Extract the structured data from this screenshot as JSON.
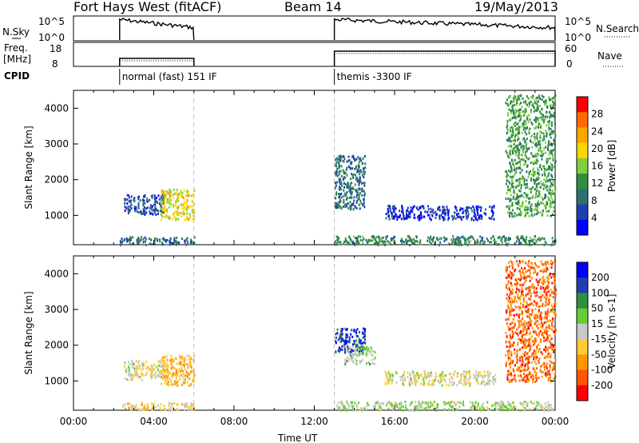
{
  "header": {
    "radar": "Fort Hays West (fitACF)",
    "beam": "Beam 14",
    "date": "19/May/2013"
  },
  "summary": {
    "nsky_label": "N.Sky",
    "nsky_ticks": [
      "10^5",
      "10^0"
    ],
    "nsearch_label": "N.Search",
    "nsearch_ticks": [
      "10^5",
      "10^0"
    ],
    "freq_label": [
      "Freq.",
      "[MHz]"
    ],
    "freq_ticks": [
      "18",
      "8"
    ],
    "nave_label": "Nave",
    "nave_ticks": [
      "60",
      "0"
    ],
    "cpid_label": "CPID",
    "cpid_segments": [
      {
        "start_hour": 2.3,
        "end_hour": 6.0,
        "label": "normal (fast) 151 IF"
      },
      {
        "start_hour": 13.0,
        "end_hour": 24.0,
        "label": "themis -3300 IF"
      }
    ]
  },
  "chart_data": [
    {
      "type": "heatmap",
      "title": "",
      "xlabel": "Time UT",
      "ylabel": "Slant Range [km]",
      "xlim": [
        0,
        24
      ],
      "ylim": [
        180,
        4500
      ],
      "x_ticks": [
        "00:00",
        "04:00",
        "08:00",
        "12:00",
        "16:00",
        "20:00",
        "00:00"
      ],
      "y_ticks": [
        "1000",
        "2000",
        "3000",
        "4000"
      ],
      "colorbar": {
        "label": "Power [dB]",
        "ticks": [
          "28",
          "24",
          "20",
          "16",
          "12",
          "8",
          "4"
        ],
        "range": [
          0,
          30
        ],
        "colors": [
          "#0000ff",
          "#1f3fb0",
          "#2e6f6f",
          "#2f8f3f",
          "#7fcf3f",
          "#ffd700",
          "#ffa500",
          "#ff6a00",
          "#ff0000"
        ]
      },
      "regions": [
        {
          "t0": 2.3,
          "t1": 6.0,
          "r0": 200,
          "r1": 420,
          "value": 8
        },
        {
          "t0": 2.5,
          "t1": 4.5,
          "r0": 1050,
          "r1": 1600,
          "value": 6
        },
        {
          "t0": 4.3,
          "t1": 6.0,
          "r0": 900,
          "r1": 1750,
          "value": 18
        },
        {
          "t0": 13.0,
          "t1": 14.5,
          "r0": 1200,
          "r1": 2700,
          "value": 8
        },
        {
          "t0": 15.5,
          "t1": 21.0,
          "r0": 900,
          "r1": 1300,
          "value": 4
        },
        {
          "t0": 13.0,
          "t1": 24.0,
          "r0": 200,
          "r1": 450,
          "value": 10
        },
        {
          "t0": 21.5,
          "t1": 24.0,
          "r0": 1000,
          "r1": 4400,
          "value": 12
        }
      ]
    },
    {
      "type": "heatmap",
      "title": "",
      "xlabel": "Time UT",
      "ylabel": "Slant Range [km]",
      "xlim": [
        0,
        24
      ],
      "ylim": [
        180,
        4500
      ],
      "x_ticks": [
        "00:00",
        "04:00",
        "08:00",
        "12:00",
        "16:00",
        "20:00",
        "00:00"
      ],
      "y_ticks": [
        "1000",
        "2000",
        "3000",
        "4000"
      ],
      "colorbar": {
        "label": "Velocity [m s-1]",
        "ticks": [
          "200",
          "100",
          "50",
          "15",
          "-15",
          "-50",
          "-100",
          "-200"
        ],
        "range": [
          -250,
          250
        ],
        "colors": [
          "#ff0000",
          "#ff5500",
          "#ff9900",
          "#ffcc33",
          "#c8c8c8",
          "#66cc33",
          "#2f8f3f",
          "#1f3fb0",
          "#0000ff"
        ]
      },
      "regions": [
        {
          "t0": 2.3,
          "t1": 6.0,
          "r0": 200,
          "r1": 420,
          "value": -40
        },
        {
          "t0": 2.5,
          "t1": 4.5,
          "r0": 1050,
          "r1": 1600,
          "value": -20
        },
        {
          "t0": 4.3,
          "t1": 6.0,
          "r0": 900,
          "r1": 1750,
          "value": -80
        },
        {
          "t0": 13.0,
          "t1": 14.5,
          "r0": 1800,
          "r1": 2500,
          "value": 180
        },
        {
          "t0": 13.5,
          "t1": 15.0,
          "r0": 1500,
          "r1": 2000,
          "value": 30
        },
        {
          "t0": 15.5,
          "t1": 21.0,
          "r0": 900,
          "r1": 1300,
          "value": -15
        },
        {
          "t0": 13.0,
          "t1": 24.0,
          "r0": 200,
          "r1": 450,
          "value": 20
        },
        {
          "t0": 21.5,
          "t1": 24.0,
          "r0": 1000,
          "r1": 4400,
          "value": -150
        }
      ]
    }
  ],
  "time_axis_label": "Time UT"
}
